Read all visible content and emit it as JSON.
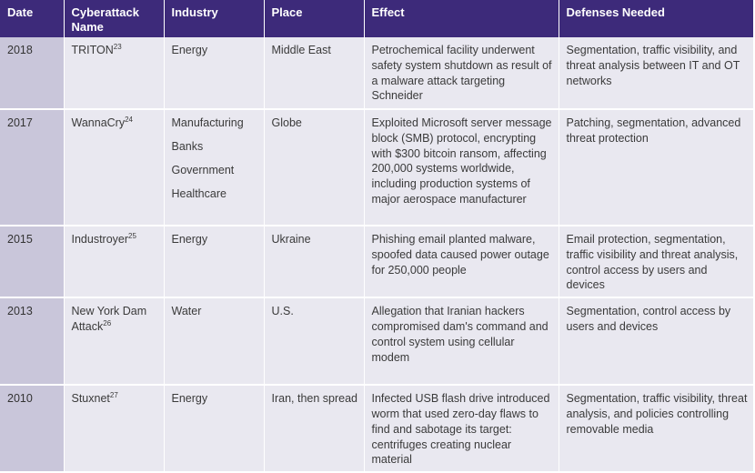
{
  "headers": [
    "Date",
    "Cyberattack Name",
    "Industry",
    "Place",
    "Effect",
    "Defenses Needed"
  ],
  "rows": [
    {
      "date": "2018",
      "name": "TRITON",
      "ref": "23",
      "industry": [
        "Energy"
      ],
      "place": "Middle East",
      "effect": "Petrochemical facility underwent safety system shutdown as result of a malware attack targeting Schneider",
      "defenses": "Segmentation, traffic visibility, and threat analysis between IT and OT networks"
    },
    {
      "date": "2017",
      "name": "WannaCry",
      "ref": "24",
      "industry": [
        "Manufacturing",
        "Banks",
        "Government",
        "Healthcare"
      ],
      "place": "Globe",
      "effect": "Exploited Microsoft server message block (SMB) protocol, encrypting with $300 bitcoin ransom, affecting 200,000 systems worldwide, including production systems of major aerospace manufacturer",
      "defenses": "Patching, segmentation, advanced threat protection"
    },
    {
      "date": "2015",
      "name": "Industroyer",
      "ref": "25",
      "industry": [
        "Energy"
      ],
      "place": "Ukraine",
      "effect": "Phishing email planted malware, spoofed data caused power outage for 250,000 people",
      "defenses": "Email protection, segmentation, traffic visibility and threat analysis, control access by users and devices"
    },
    {
      "date": "2013",
      "name": "New York Dam Attack",
      "ref": "26",
      "industry": [
        "Water"
      ],
      "place": "U.S.",
      "effect": "Allegation that Iranian hackers compromised dam's command and control system using cellular modem",
      "defenses": "Segmentation, control access by users and devices"
    },
    {
      "date": "2010",
      "name": "Stuxnet",
      "ref": "27",
      "industry": [
        "Energy"
      ],
      "place": "Iran, then spread",
      "effect": "Infected USB flash drive introduced worm that used zero-day flaws to find and sabotage its target: centrifuges creating nuclear material",
      "defenses": "Segmentation, traffic visibility, threat analysis, and policies controlling removable media"
    }
  ],
  "colors": {
    "header_bg": "#3d2a7a",
    "date_col_bg": "#c9c6da",
    "cell_bg": "#e9e8f0"
  }
}
